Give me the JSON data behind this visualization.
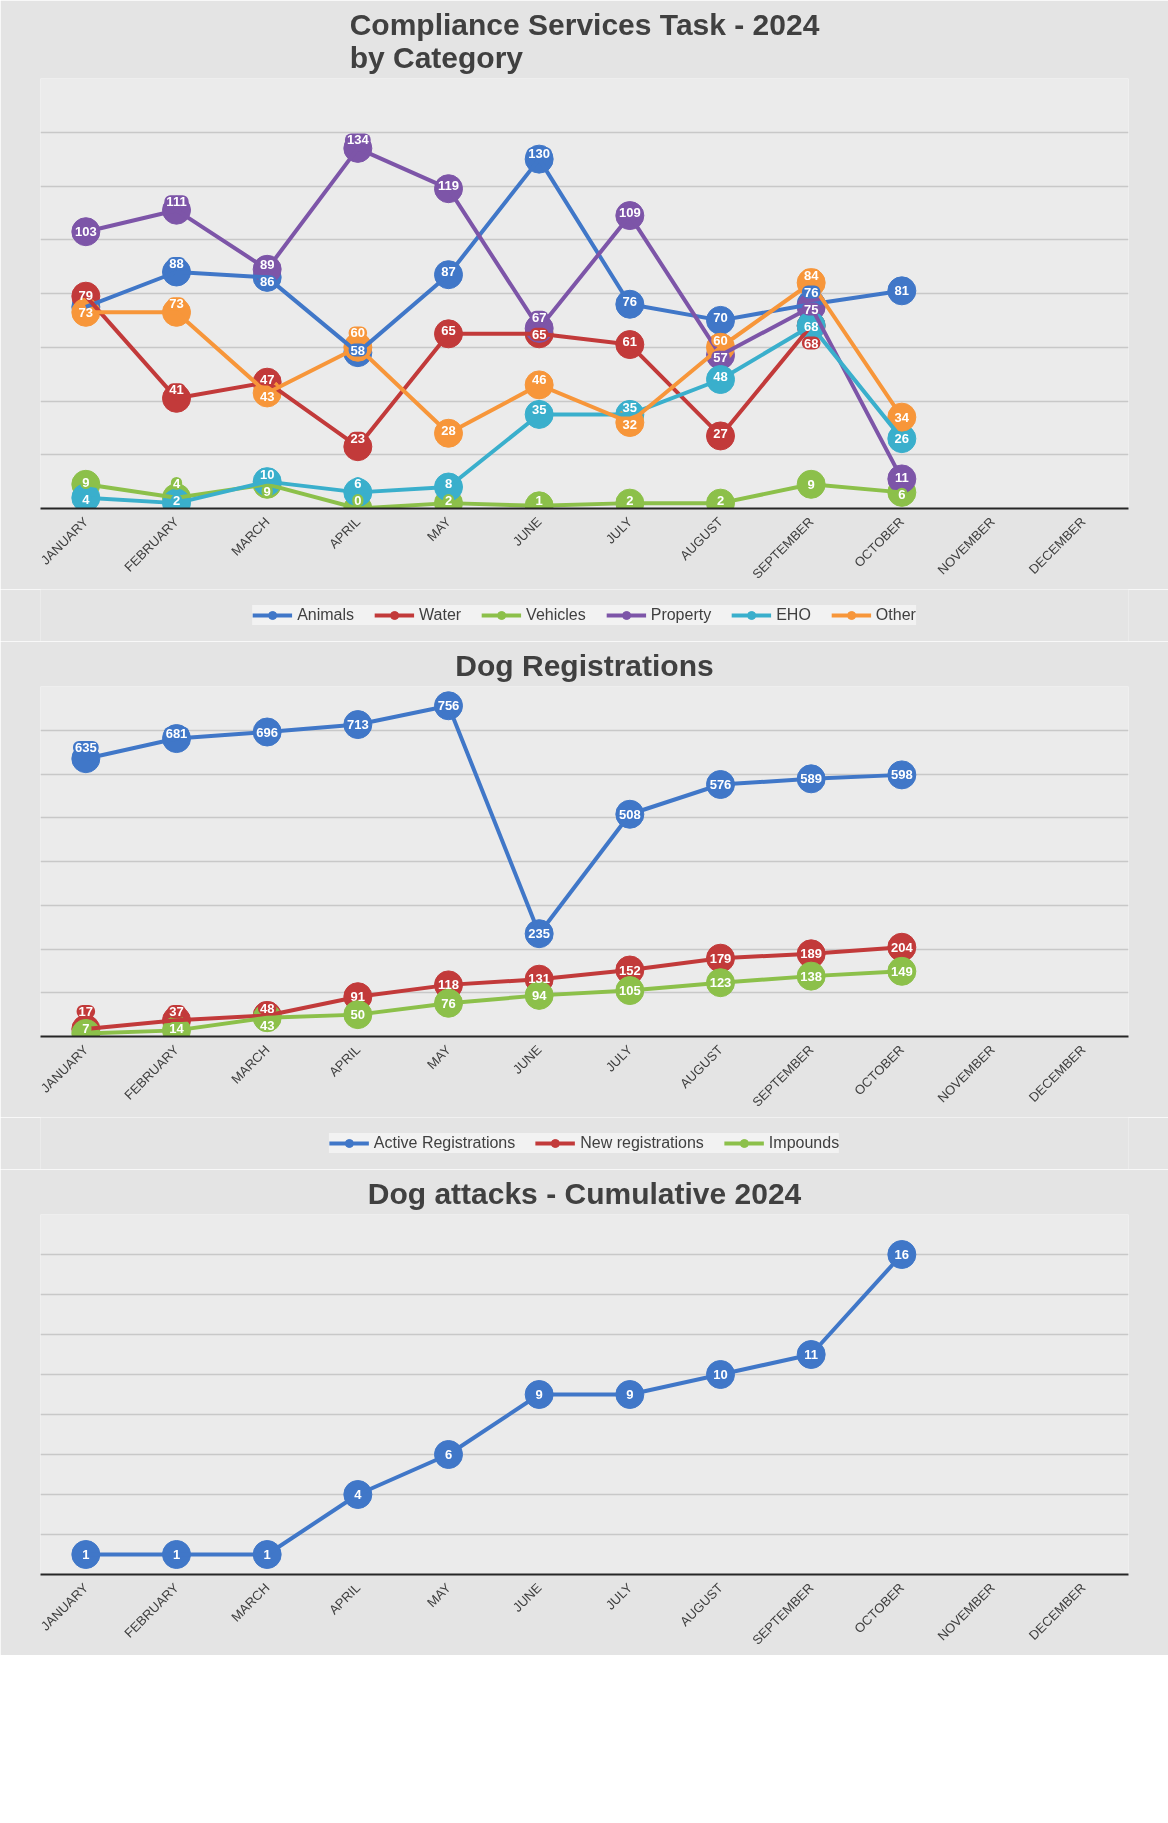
{
  "chart_data": [
    {
      "type": "line",
      "title": "Compliance Services Task - 2024\nby Category",
      "categories": [
        "JANUARY",
        "FEBRUARY",
        "MARCH",
        "APRIL",
        "MAY",
        "JUNE",
        "JULY",
        "AUGUST",
        "SEPTEMBER",
        "OCTOBER",
        "NOVEMBER",
        "DECEMBER"
      ],
      "ylim": [
        0,
        160
      ],
      "yticks": [
        {
          "value": 0,
          "label": null
        },
        {
          "value": 20,
          "label": null
        },
        {
          "value": 40,
          "label": null
        },
        {
          "value": 60,
          "label": null
        },
        {
          "value": 80,
          "label": null
        },
        {
          "value": 100,
          "label": null
        },
        {
          "value": 120,
          "label": null
        },
        {
          "value": 140,
          "label": null
        },
        {
          "value": 160,
          "label": null
        }
      ],
      "tick_labels": "x",
      "grid": "y",
      "legend": "bottom",
      "marker": "circle",
      "line_style": "solid",
      "data_labels": true,
      "series": [
        {
          "name": "Animals",
          "color": "#4077c8",
          "values": [
            75,
            88,
            86,
            58,
            87,
            130,
            76,
            70,
            76,
            81,
            null,
            null
          ],
          "value_labels": [
            null,
            "88",
            "86",
            "58",
            "87",
            "130",
            "76",
            "70",
            "76",
            "81",
            null,
            null
          ]
        },
        {
          "name": "Water",
          "color": "#c23a3a",
          "values": [
            79,
            41,
            47,
            23,
            65,
            65,
            61,
            27,
            68,
            null,
            null,
            null
          ],
          "value_labels": [
            "79",
            "41",
            "47",
            "23",
            "65",
            "65",
            "61",
            "27",
            "68",
            null,
            null,
            null
          ]
        },
        {
          "name": "Vehicles",
          "color": "#8cc04a",
          "values": [
            9,
            4,
            9,
            0,
            2,
            1,
            2,
            2,
            9,
            6,
            null,
            null
          ]
        },
        {
          "name": "Property",
          "color": "#7d55a8",
          "values": [
            103,
            111,
            89,
            134,
            119,
            67,
            109,
            57,
            75,
            11,
            null,
            null
          ]
        },
        {
          "name": "EHO",
          "color": "#3aafcc",
          "values": [
            4,
            2,
            10,
            6,
            8,
            35,
            35,
            48,
            68,
            26,
            null,
            null
          ]
        },
        {
          "name": "Other",
          "color": "#f7963a",
          "values": [
            73,
            73,
            43,
            60,
            28,
            46,
            32,
            60,
            84,
            34,
            null,
            null
          ]
        }
      ]
    },
    {
      "type": "line",
      "title": "Dog Registrations",
      "categories": [
        "JANUARY",
        "FEBRUARY",
        "MARCH",
        "APRIL",
        "MAY",
        "JUNE",
        "JULY",
        "AUGUST",
        "SEPTEMBER",
        "OCTOBER",
        "NOVEMBER",
        "DECEMBER"
      ],
      "ylim": [
        0,
        800
      ],
      "yticks": [
        {
          "value": 0,
          "label": null
        },
        {
          "value": 100,
          "label": null
        },
        {
          "value": 200,
          "label": null
        },
        {
          "value": 300,
          "label": null
        },
        {
          "value": 400,
          "label": null
        },
        {
          "value": 500,
          "label": null
        },
        {
          "value": 600,
          "label": null
        },
        {
          "value": 700,
          "label": null
        },
        {
          "value": 800,
          "label": null
        }
      ],
      "tick_labels": "x",
      "grid": "y",
      "legend": "bottom",
      "marker": "circle",
      "line_style": "solid",
      "data_labels": true,
      "series": [
        {
          "name": "Active Registrations",
          "color": "#4077c8",
          "values": [
            635,
            681,
            696,
            713,
            756,
            235,
            508,
            576,
            589,
            598,
            null,
            null
          ]
        },
        {
          "name": "New registrations",
          "color": "#c23a3a",
          "values": [
            17,
            37,
            48,
            91,
            118,
            131,
            152,
            179,
            189,
            204,
            null,
            null
          ]
        },
        {
          "name": "Impounds",
          "color": "#8cc04a",
          "values": [
            7,
            14,
            43,
            50,
            76,
            94,
            105,
            123,
            138,
            149,
            null,
            null
          ]
        }
      ]
    },
    {
      "type": "line",
      "title": "Dog attacks - Cumulative 2024",
      "categories": [
        "JANUARY",
        "FEBRUARY",
        "MARCH",
        "APRIL",
        "MAY",
        "JUNE",
        "JULY",
        "AUGUST",
        "SEPTEMBER",
        "OCTOBER",
        "NOVEMBER",
        "DECEMBER"
      ],
      "ylim": [
        0,
        18
      ],
      "yticks": [
        {
          "value": 0,
          "label": null
        },
        {
          "value": 2,
          "label": null
        },
        {
          "value": 4,
          "label": null
        },
        {
          "value": 6,
          "label": null
        },
        {
          "value": 8,
          "label": null
        },
        {
          "value": 10,
          "label": null
        },
        {
          "value": 12,
          "label": null
        },
        {
          "value": 14,
          "label": null
        },
        {
          "value": 16,
          "label": null
        },
        {
          "value": 18,
          "label": null
        }
      ],
      "tick_labels": "x",
      "grid": "y",
      "marker": "circle",
      "line_style": "solid",
      "data_labels": true,
      "series": [
        {
          "color": "#4077c8",
          "values": [
            1,
            1,
            1,
            4,
            6,
            9,
            9,
            10,
            11,
            16,
            null,
            null
          ]
        }
      ]
    }
  ]
}
